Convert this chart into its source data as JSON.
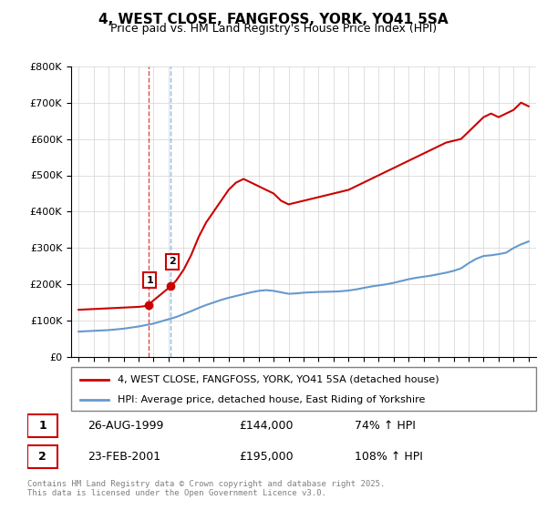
{
  "title": "4, WEST CLOSE, FANGFOSS, YORK, YO41 5SA",
  "subtitle": "Price paid vs. HM Land Registry's House Price Index (HPI)",
  "legend_property": "4, WEST CLOSE, FANGFOSS, YORK, YO41 5SA (detached house)",
  "legend_hpi": "HPI: Average price, detached house, East Riding of Yorkshire",
  "footer": "Contains HM Land Registry data © Crown copyright and database right 2025.\nThis data is licensed under the Open Government Licence v3.0.",
  "sale1_label": "1",
  "sale1_date": "26-AUG-1999",
  "sale1_price": "£144,000",
  "sale1_hpi": "74% ↑ HPI",
  "sale2_label": "2",
  "sale2_date": "23-FEB-2001",
  "sale2_price": "£195,000",
  "sale2_hpi": "108% ↑ HPI",
  "sale1_x": 1999.65,
  "sale1_y": 144000,
  "sale2_x": 2001.15,
  "sale2_y": 195000,
  "property_color": "#cc0000",
  "hpi_color": "#6699cc",
  "vline1_x": 1999.65,
  "vline2_x": 2001.15,
  "ylim": [
    0,
    800000
  ],
  "xlim": [
    1994.5,
    2025.5
  ],
  "yticks": [
    0,
    100000,
    200000,
    300000,
    400000,
    500000,
    600000,
    700000,
    800000
  ],
  "ytick_labels": [
    "£0",
    "£100K",
    "£200K",
    "£300K",
    "£400K",
    "£500K",
    "£600K",
    "£700K",
    "£800K"
  ],
  "property_x": [
    1995.0,
    1995.25,
    1995.5,
    1995.75,
    1996.0,
    1996.25,
    1996.5,
    1996.75,
    1997.0,
    1997.25,
    1997.5,
    1997.75,
    1998.0,
    1998.25,
    1998.5,
    1998.75,
    1999.0,
    1999.25,
    1999.5,
    1999.65,
    2001.15,
    2001.5,
    2002.0,
    2002.5,
    2003.0,
    2003.5,
    2004.0,
    2004.5,
    2005.0,
    2005.5,
    2006.0,
    2006.5,
    2007.0,
    2007.5,
    2008.0,
    2008.5,
    2009.0,
    2009.5,
    2010.0,
    2010.5,
    2011.0,
    2011.5,
    2012.0,
    2012.5,
    2013.0,
    2013.5,
    2014.0,
    2014.5,
    2015.0,
    2015.5,
    2016.0,
    2016.5,
    2017.0,
    2017.5,
    2018.0,
    2018.5,
    2019.0,
    2019.5,
    2020.0,
    2020.5,
    2021.0,
    2021.5,
    2022.0,
    2022.5,
    2023.0,
    2023.5,
    2024.0,
    2024.5,
    2025.0
  ],
  "property_y": [
    130000,
    130500,
    131000,
    131500,
    132000,
    132500,
    133000,
    133500,
    134000,
    134500,
    135000,
    135500,
    136000,
    136500,
    137000,
    137500,
    138000,
    139000,
    141000,
    144000,
    195000,
    210000,
    240000,
    280000,
    330000,
    370000,
    400000,
    430000,
    460000,
    480000,
    490000,
    480000,
    470000,
    460000,
    450000,
    430000,
    420000,
    425000,
    430000,
    435000,
    440000,
    445000,
    450000,
    455000,
    460000,
    470000,
    480000,
    490000,
    500000,
    510000,
    520000,
    530000,
    540000,
    550000,
    560000,
    570000,
    580000,
    590000,
    595000,
    600000,
    620000,
    640000,
    660000,
    670000,
    660000,
    670000,
    680000,
    700000,
    690000
  ],
  "hpi_x": [
    1995.0,
    1995.25,
    1995.5,
    1995.75,
    1996.0,
    1996.25,
    1996.5,
    1996.75,
    1997.0,
    1997.25,
    1997.5,
    1997.75,
    1998.0,
    1998.25,
    1998.5,
    1998.75,
    1999.0,
    1999.25,
    1999.5,
    1999.75,
    2000.0,
    2000.25,
    2000.5,
    2000.75,
    2001.0,
    2001.25,
    2001.5,
    2002.0,
    2002.5,
    2003.0,
    2003.5,
    2004.0,
    2004.5,
    2005.0,
    2005.5,
    2006.0,
    2006.5,
    2007.0,
    2007.5,
    2008.0,
    2008.5,
    2009.0,
    2009.5,
    2010.0,
    2010.5,
    2011.0,
    2011.5,
    2012.0,
    2012.5,
    2013.0,
    2013.5,
    2014.0,
    2014.5,
    2015.0,
    2015.5,
    2016.0,
    2016.5,
    2017.0,
    2017.5,
    2018.0,
    2018.5,
    2019.0,
    2019.5,
    2020.0,
    2020.5,
    2021.0,
    2021.5,
    2022.0,
    2022.5,
    2023.0,
    2023.5,
    2024.0,
    2024.5,
    2025.0
  ],
  "hpi_y": [
    70000,
    70500,
    71000,
    71500,
    72000,
    72500,
    73000,
    73500,
    74000,
    75000,
    76000,
    77000,
    78000,
    79500,
    81000,
    82500,
    84000,
    86000,
    88000,
    90000,
    92000,
    95000,
    98000,
    101000,
    104000,
    107000,
    110000,
    118000,
    126000,
    135000,
    143000,
    150000,
    157000,
    163000,
    168000,
    173000,
    178000,
    182000,
    184000,
    182000,
    178000,
    174000,
    175000,
    177000,
    178000,
    179000,
    179500,
    180000,
    181000,
    183000,
    186000,
    190000,
    194000,
    197000,
    200000,
    204000,
    209000,
    214000,
    218000,
    221000,
    224000,
    228000,
    232000,
    237000,
    244000,
    258000,
    270000,
    278000,
    280000,
    283000,
    287000,
    300000,
    310000,
    318000
  ]
}
